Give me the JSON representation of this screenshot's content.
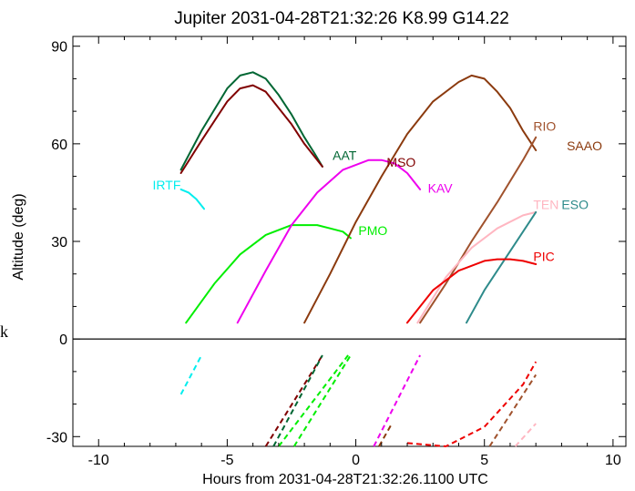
{
  "chart_data": {
    "type": "line",
    "title": "Jupiter 2031-04-28T21:32:26  K8.99  G14.22",
    "xlabel": "Hours from 2031-04-28T21:32:26.1100 UTC",
    "ylabel": "Altitude (deg)",
    "xlim": [
      -11,
      10.5
    ],
    "ylim": [
      -33,
      93
    ],
    "x_ticks": [
      -10,
      -5,
      0,
      5,
      10
    ],
    "y_ticks": [
      -30,
      0,
      30,
      60,
      90
    ],
    "x_tick_labels": [
      "-10",
      "-5",
      "0",
      "5",
      "10"
    ],
    "y_tick_labels": [
      "-30",
      "0",
      "30",
      "60",
      "90"
    ],
    "stray_label": "k",
    "series": [
      {
        "name": "AAT",
        "color": "#006633",
        "x": [
          -6.8,
          -6.0,
          -5.0,
          -4.5,
          -4.0,
          -3.5,
          -3.0,
          -2.5,
          -2.0,
          -1.6,
          -1.3
        ],
        "y": [
          52,
          64,
          77,
          81,
          82,
          80,
          75,
          69,
          62,
          57,
          53
        ],
        "label_at": [
          -0.9,
          55
        ]
      },
      {
        "name": "MSO",
        "color": "#800000",
        "x": [
          -6.8,
          -6.0,
          -5.0,
          -4.5,
          -4.0,
          -3.5,
          -3.0,
          -2.5,
          -2.0,
          -1.6,
          -1.3
        ],
        "y": [
          51,
          61,
          73,
          77,
          78,
          76,
          71,
          66,
          60,
          56,
          53
        ],
        "label_at": [
          1.2,
          53
        ]
      },
      {
        "name": "IRTF",
        "color": "#00EEEE",
        "x": [
          -6.8,
          -6.5,
          -6.2,
          -5.9
        ],
        "y": [
          46,
          45,
          43,
          40
        ],
        "label_at": [
          -7.9,
          46
        ]
      },
      {
        "name": "PMO",
        "color": "#00EE00",
        "x": [
          -6.6,
          -5.5,
          -4.5,
          -3.5,
          -2.5,
          -2.0,
          -1.5,
          -1.0,
          -0.5,
          -0.2
        ],
        "y": [
          5,
          17,
          26,
          32,
          35,
          35,
          35,
          34,
          33,
          31
        ],
        "label_at": [
          0.1,
          32
        ]
      },
      {
        "name": "KAV",
        "color": "#EE00EE",
        "x": [
          -4.6,
          -3.5,
          -2.5,
          -1.5,
          -0.5,
          0.5,
          1.0,
          1.5,
          2.0,
          2.5
        ],
        "y": [
          5,
          21,
          35,
          45,
          52,
          55,
          55,
          54,
          51,
          46
        ],
        "label_at": [
          2.8,
          45
        ]
      },
      {
        "name": "SAAO",
        "color": "#8B3A0E",
        "x": [
          -2.0,
          -1.0,
          0.0,
          1.0,
          2.0,
          3.0,
          4.0,
          4.5,
          5.0,
          5.5,
          6.0,
          6.5,
          7.0
        ],
        "y": [
          5,
          20,
          36,
          50,
          63,
          73,
          79,
          81,
          80,
          76,
          71,
          64,
          58
        ],
        "label_at": [
          8.2,
          58
        ]
      },
      {
        "name": "RIO",
        "color": "#A0522D",
        "x": [
          2.5,
          3.5,
          4.5,
          5.5,
          6.5,
          7.0
        ],
        "y": [
          5,
          17,
          30,
          42,
          55,
          62
        ],
        "label_at": [
          6.9,
          64
        ]
      },
      {
        "name": "TEN",
        "color": "#FFB6C1",
        "x": [
          2.4,
          3.5,
          4.5,
          5.5,
          6.5,
          7.0
        ],
        "y": [
          5,
          19,
          28,
          34,
          38,
          39
        ],
        "label_at": [
          6.9,
          40
        ]
      },
      {
        "name": "ESO",
        "color": "#2E8B8B",
        "x": [
          4.3,
          5.0,
          6.0,
          7.0
        ],
        "y": [
          5,
          15,
          27,
          39
        ],
        "label_at": [
          8.0,
          40
        ]
      },
      {
        "name": "PIC",
        "color": "#EE0000",
        "x": [
          2.0,
          3.0,
          4.0,
          5.0,
          5.5,
          6.0,
          6.5,
          7.0
        ],
        "y": [
          5,
          15,
          21,
          24,
          24.5,
          24.5,
          24,
          23
        ],
        "label_at": [
          6.9,
          24
        ]
      }
    ],
    "lower_panel": [
      {
        "color": "#00EEEE",
        "x": [
          -6.8,
          -6.0
        ],
        "y": [
          -17,
          -5
        ]
      },
      {
        "color": "#800000",
        "x": [
          -3.5,
          -1.3
        ],
        "y": [
          -33,
          -5
        ]
      },
      {
        "color": "#006633",
        "x": [
          -3.2,
          -1.3
        ],
        "y": [
          -33,
          -5
        ]
      },
      {
        "color": "#00EE00",
        "x": [
          -3.0,
          -0.3
        ],
        "y": [
          -33,
          -5
        ]
      },
      {
        "color": "#00EE00",
        "x": [
          -2.4,
          -0.2
        ],
        "y": [
          -33,
          -5
        ]
      },
      {
        "color": "#EE00EE",
        "x": [
          0.7,
          2.5
        ],
        "y": [
          -33,
          -5
        ]
      },
      {
        "color": "#8B3A0E",
        "x": [
          0.9,
          1.4
        ],
        "y": [
          -33,
          -26
        ]
      },
      {
        "color": "#EE0000",
        "x": [
          2.0,
          3.5,
          5.0,
          6.5,
          7.0
        ],
        "y": [
          -32,
          -33,
          -27,
          -14,
          -7
        ]
      },
      {
        "color": "#A0522D",
        "x": [
          5.2,
          7.0
        ],
        "y": [
          -33,
          -11
        ]
      },
      {
        "color": "#FFB6C1",
        "x": [
          6.2,
          7.0
        ],
        "y": [
          -33,
          -26
        ]
      }
    ]
  }
}
